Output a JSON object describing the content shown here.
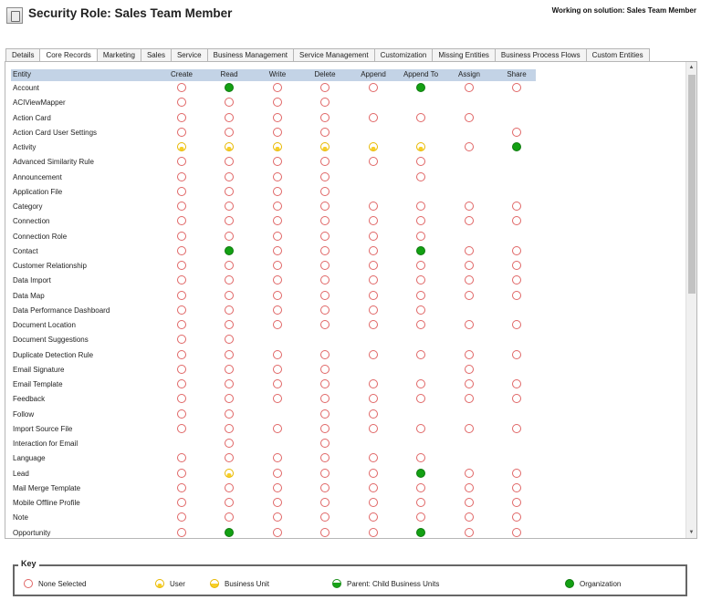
{
  "header": {
    "title": "Security Role: Sales Team Member",
    "solution": "Working on solution: Sales Team Member"
  },
  "tabs": [
    "Details",
    "Core Records",
    "Marketing",
    "Sales",
    "Service",
    "Business Management",
    "Service Management",
    "Customization",
    "Missing Entities",
    "Business Process Flows",
    "Custom Entities"
  ],
  "active_tab": "Core Records",
  "columns": [
    "Entity",
    "Create",
    "Read",
    "Write",
    "Delete",
    "Append",
    "Append To",
    "Assign",
    "Share"
  ],
  "access_legend": {
    "n": "none",
    "u": "user",
    "b": "business-unit",
    "p": "parent-child",
    "o": "organization",
    "-": "not-applicable"
  },
  "rows": [
    {
      "entity": "Account",
      "access": "nonnnonn"
    },
    {
      "entity": "ACIViewMapper",
      "access": "nnnn----"
    },
    {
      "entity": "Action Card",
      "access": "nnnnnnn-"
    },
    {
      "entity": "Action Card User Settings",
      "access": "nnnn---n"
    },
    {
      "entity": "Activity",
      "access": "uuuuuuno"
    },
    {
      "entity": "Advanced Similarity Rule",
      "access": "nnnnnn--"
    },
    {
      "entity": "Announcement",
      "access": "nnnn-n--"
    },
    {
      "entity": "Application File",
      "access": "nnnn----"
    },
    {
      "entity": "Category",
      "access": "nnnnnnnn"
    },
    {
      "entity": "Connection",
      "access": "nnnnnnnn"
    },
    {
      "entity": "Connection Role",
      "access": "nnnnnn--"
    },
    {
      "entity": "Contact",
      "access": "nonnnonn"
    },
    {
      "entity": "Customer Relationship",
      "access": "nnnnnnnn"
    },
    {
      "entity": "Data Import",
      "access": "nnnnnnnn"
    },
    {
      "entity": "Data Map",
      "access": "nnnnnnnn"
    },
    {
      "entity": "Data Performance Dashboard",
      "access": "nnnnnn--"
    },
    {
      "entity": "Document Location",
      "access": "nnnnnnnn"
    },
    {
      "entity": "Document Suggestions",
      "access": "nn------"
    },
    {
      "entity": "Duplicate Detection Rule",
      "access": "nnnnnnnn"
    },
    {
      "entity": "Email Signature",
      "access": "nnnn--n-"
    },
    {
      "entity": "Email Template",
      "access": "nnnnnnnn"
    },
    {
      "entity": "Feedback",
      "access": "nnnnnnnn"
    },
    {
      "entity": "Follow",
      "access": "nn-nn---"
    },
    {
      "entity": "Import Source File",
      "access": "nnnnnnnn"
    },
    {
      "entity": "Interaction for Email",
      "access": "-n-n----"
    },
    {
      "entity": "Language",
      "access": "nnnnnn--"
    },
    {
      "entity": "Lead",
      "access": "nunnnonn"
    },
    {
      "entity": "Mail Merge Template",
      "access": "nnnnnnnn"
    },
    {
      "entity": "Mobile Offline Profile",
      "access": "nnnnnnnn"
    },
    {
      "entity": "Note",
      "access": "nnnnnnnn"
    },
    {
      "entity": "Opportunity",
      "access": "nonnnonn"
    }
  ],
  "key": {
    "title": "Key",
    "items": [
      {
        "label": "None Selected",
        "level": "none",
        "icon": "none-selected-icon"
      },
      {
        "label": "User",
        "level": "user",
        "icon": "user-level-icon"
      },
      {
        "label": "Business Unit",
        "level": "business-unit",
        "icon": "business-unit-level-icon"
      },
      {
        "label": "Parent: Child Business Units",
        "level": "parent-child",
        "icon": "parent-child-level-icon"
      },
      {
        "label": "Organization",
        "level": "organization",
        "icon": "organization-level-icon"
      }
    ]
  },
  "colors": {
    "none": "#e06666",
    "user": "#f7cf27",
    "business_unit": "#f7cf27",
    "parent": "#17a317",
    "organization": "#13a013",
    "grid_header": "#c3d3e6"
  }
}
